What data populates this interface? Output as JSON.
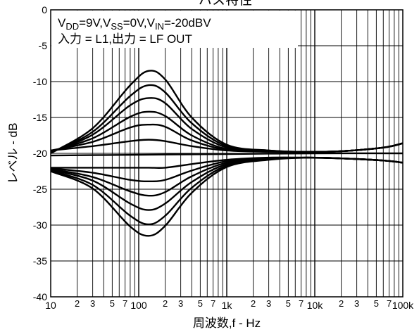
{
  "chart_data": {
    "type": "line",
    "title": "バス特性",
    "xlabel": "周波数,f - Hz",
    "ylabel": "レベル - dB",
    "x_scale": "log",
    "xlim": [
      10,
      100000
    ],
    "ylim": [
      -40,
      0
    ],
    "y_ticks": [
      "0",
      "-5",
      "-10",
      "-15",
      "-20",
      "-25",
      "-30",
      "-35",
      "-40"
    ],
    "x_major_ticks": [
      {
        "value": 10,
        "label": "10"
      },
      {
        "value": 100,
        "label": "100"
      },
      {
        "value": 1000,
        "label": "1k"
      },
      {
        "value": 10000,
        "label": "10k"
      },
      {
        "value": 100000,
        "label": "100k"
      }
    ],
    "x_minor_labels": [
      "2",
      "3",
      "5",
      "7"
    ],
    "grid": true,
    "annotation": {
      "line1": {
        "v1": "V",
        "s1": "DD",
        "t1": "=9V,V",
        "s2": "SS",
        "t2": "=0V,V",
        "s3": "IN",
        "t3": "=-20dBV"
      },
      "line2": "入力 = L1,出力 = LF OUT"
    },
    "series": [
      {
        "x": [
          10,
          30,
          80,
          130,
          200,
          400,
          1000,
          3000,
          8000,
          20000,
          60000,
          100000
        ],
        "y": [
          -20.0,
          -16.5,
          -10.5,
          -8.5,
          -9.7,
          -15.0,
          -18.8,
          -19.6,
          -19.8,
          -19.7,
          -19.2,
          -18.6
        ]
      },
      {
        "x": [
          10,
          30,
          80,
          130,
          200,
          400,
          1000,
          3000,
          8000,
          20000,
          60000,
          100000
        ],
        "y": [
          -19.9,
          -17.0,
          -12.0,
          -10.5,
          -11.5,
          -15.8,
          -19.0,
          -19.6,
          -19.8,
          -19.7,
          -19.2,
          -18.6
        ]
      },
      {
        "x": [
          10,
          30,
          80,
          130,
          200,
          400,
          1000,
          3000,
          8000,
          20000,
          60000,
          100000
        ],
        "y": [
          -19.8,
          -17.4,
          -13.3,
          -12.3,
          -13.0,
          -16.6,
          -19.2,
          -19.7,
          -19.8,
          -19.7,
          -19.2,
          -18.6
        ]
      },
      {
        "x": [
          10,
          30,
          80,
          130,
          200,
          400,
          1000,
          3000,
          8000,
          20000,
          60000,
          100000
        ],
        "y": [
          -19.7,
          -17.9,
          -14.9,
          -14.2,
          -14.8,
          -17.5,
          -19.4,
          -19.7,
          -19.8,
          -19.7,
          -19.2,
          -18.6
        ]
      },
      {
        "x": [
          10,
          30,
          80,
          130,
          200,
          400,
          1000,
          3000,
          8000,
          20000,
          60000,
          100000
        ],
        "y": [
          -19.6,
          -18.4,
          -16.4,
          -16.0,
          -16.3,
          -18.2,
          -19.5,
          -19.7,
          -19.8,
          -19.7,
          -19.2,
          -18.6
        ]
      },
      {
        "x": [
          10,
          30,
          80,
          130,
          200,
          400,
          1000,
          3000,
          8000,
          20000,
          60000,
          100000
        ],
        "y": [
          -19.6,
          -19.0,
          -18.3,
          -18.1,
          -18.3,
          -19.0,
          -19.6,
          -19.8,
          -19.8,
          -19.7,
          -19.2,
          -18.6
        ]
      },
      {
        "x": [
          10,
          100,
          1000,
          10000,
          100000
        ],
        "y": [
          -20.3,
          -20.2,
          -20.1,
          -20.0,
          -20.0
        ]
      },
      {
        "x": [
          10,
          30,
          80,
          130,
          200,
          400,
          1000,
          3000,
          8000,
          20000,
          60000,
          100000
        ],
        "y": [
          -22.0,
          -22.0,
          -22.0,
          -22.0,
          -22.0,
          -21.5,
          -20.9,
          -20.6,
          -20.6,
          -20.7,
          -21.0,
          -21.3
        ]
      },
      {
        "x": [
          10,
          30,
          80,
          130,
          200,
          400,
          1000,
          3000,
          8000,
          20000,
          60000,
          100000
        ],
        "y": [
          -22.1,
          -22.7,
          -23.7,
          -23.9,
          -23.7,
          -22.4,
          -21.1,
          -20.7,
          -20.6,
          -20.7,
          -21.0,
          -21.3
        ]
      },
      {
        "x": [
          10,
          30,
          80,
          130,
          200,
          400,
          1000,
          3000,
          8000,
          20000,
          60000,
          100000
        ],
        "y": [
          -22.2,
          -23.3,
          -25.3,
          -25.9,
          -25.4,
          -23.2,
          -21.3,
          -20.7,
          -20.6,
          -20.7,
          -21.0,
          -21.3
        ]
      },
      {
        "x": [
          10,
          30,
          80,
          130,
          200,
          400,
          1000,
          3000,
          8000,
          20000,
          60000,
          100000
        ],
        "y": [
          -22.3,
          -23.8,
          -27.0,
          -27.9,
          -27.0,
          -24.0,
          -21.5,
          -20.8,
          -20.6,
          -20.7,
          -21.0,
          -21.3
        ]
      },
      {
        "x": [
          10,
          30,
          80,
          130,
          200,
          400,
          1000,
          3000,
          8000,
          20000,
          60000,
          100000
        ],
        "y": [
          -22.4,
          -24.4,
          -28.7,
          -29.9,
          -28.7,
          -24.8,
          -21.7,
          -20.8,
          -20.6,
          -20.7,
          -21.0,
          -21.3
        ]
      },
      {
        "x": [
          10,
          30,
          80,
          130,
          200,
          400,
          1000,
          3000,
          8000,
          20000,
          60000,
          100000
        ],
        "y": [
          -22.5,
          -24.9,
          -30.2,
          -31.5,
          -30.1,
          -25.5,
          -21.9,
          -20.9,
          -20.6,
          -20.7,
          -21.0,
          -21.3
        ]
      }
    ]
  }
}
